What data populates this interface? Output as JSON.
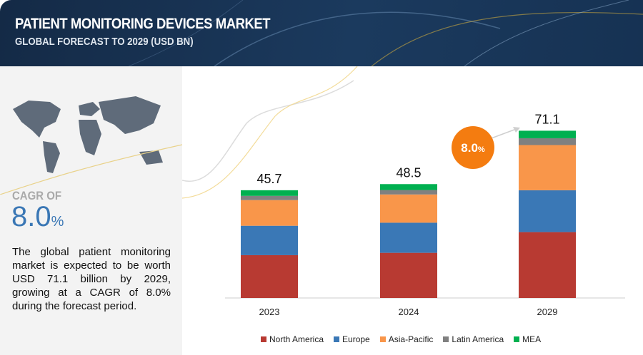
{
  "header": {
    "title": "PATIENT MONITORING DEVICES MARKET",
    "subtitle": "GLOBAL FORECAST TO 2029 (USD BN)"
  },
  "left": {
    "cagr_label": "CAGR OF",
    "cagr_value": "8.0",
    "cagr_unit": "%",
    "description": "The global patient monitoring market is expected to be worth USD 71.1 billion by 2029, growing at a CAGR of 8.0% during the forecast period.",
    "map_icon": "world-map"
  },
  "badge": {
    "value": "8.0",
    "unit": "%",
    "color": "#f47c10"
  },
  "chart_data": {
    "type": "bar",
    "stacked": true,
    "title": "PATIENT MONITORING DEVICES MARKET",
    "subtitle": "GLOBAL FORECAST TO 2029 (USD BN)",
    "categories": [
      "2023",
      "2024",
      "2029"
    ],
    "totals": [
      "45.7",
      "48.5",
      "71.1"
    ],
    "series": [
      {
        "name": "North America",
        "color": "#b83a32",
        "values": [
          18.2,
          19.2,
          28.0
        ]
      },
      {
        "name": "Europe",
        "color": "#3a78b6",
        "values": [
          12.5,
          12.8,
          17.8
        ]
      },
      {
        "name": "Asia-Pacific",
        "color": "#f9964a",
        "values": [
          10.9,
          12.0,
          19.2
        ]
      },
      {
        "name": "Latin America",
        "color": "#808080",
        "values": [
          1.8,
          1.9,
          2.9
        ]
      },
      {
        "name": "MEA",
        "color": "#00b050",
        "values": [
          2.4,
          2.5,
          3.2
        ]
      }
    ],
    "legend": "bottom",
    "grid": false,
    "yaxis_visible": false
  }
}
